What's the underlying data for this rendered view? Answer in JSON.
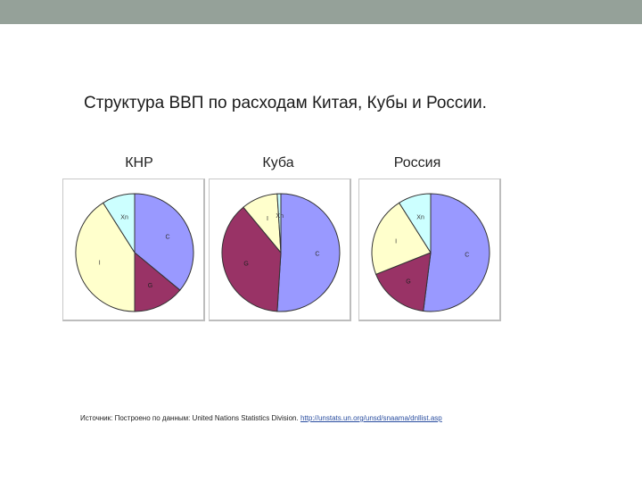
{
  "title": "Структура ВВП по расходам Китая, Кубы и России.",
  "source": {
    "text": "Источник: Построено по данным: United Nations Statistics Division.",
    "link": "http://unstats.un.org/unsd/snaama/dnllist.asp"
  },
  "colors": {
    "C": "#9999ff",
    "G": "#993366",
    "I": "#ffffcc",
    "Xn": "#ccffff",
    "topbar": "#95a199"
  },
  "chart_data": [
    {
      "type": "pie",
      "title": "КНР",
      "slices": [
        {
          "label": "C",
          "value": 36,
          "color": "#9999ff"
        },
        {
          "label": "G",
          "value": 14,
          "color": "#993366"
        },
        {
          "label": "I",
          "value": 41,
          "color": "#ffffcc"
        },
        {
          "label": "Xn",
          "value": 9,
          "color": "#ccffff"
        }
      ]
    },
    {
      "type": "pie",
      "title": "Куба",
      "slices": [
        {
          "label": "C",
          "value": 51,
          "color": "#9999ff"
        },
        {
          "label": "G",
          "value": 38,
          "color": "#993366"
        },
        {
          "label": "I",
          "value": 10,
          "color": "#ffffcc"
        },
        {
          "label": "Xn",
          "value": 1,
          "color": "#ccffff"
        }
      ]
    },
    {
      "type": "pie",
      "title": "Россия",
      "slices": [
        {
          "label": "C",
          "value": 52,
          "color": "#9999ff"
        },
        {
          "label": "G",
          "value": 17,
          "color": "#993366"
        },
        {
          "label": "I",
          "value": 22,
          "color": "#ffffcc"
        },
        {
          "label": "Xn",
          "value": 9,
          "color": "#ccffff"
        }
      ]
    }
  ]
}
